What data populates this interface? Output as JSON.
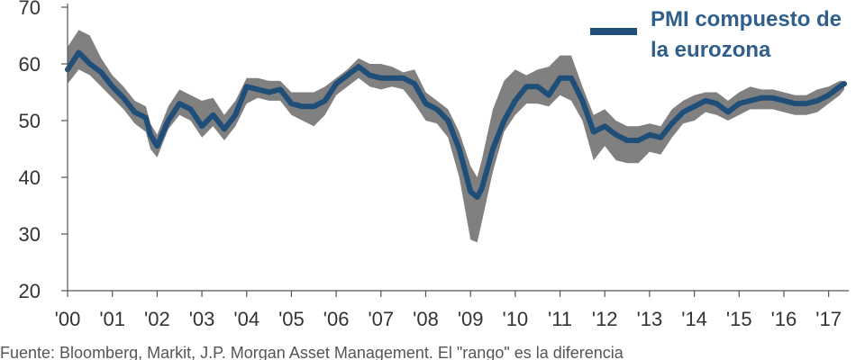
{
  "chart_data": {
    "type": "line",
    "title": "",
    "xlabel": "",
    "ylabel": "",
    "ylim": [
      20,
      70
    ],
    "xlim": [
      2000,
      2017.45
    ],
    "y_ticks": [
      20,
      30,
      40,
      50,
      60,
      70
    ],
    "x_tick_values": [
      2000,
      2001,
      2002,
      2003,
      2004,
      2005,
      2006,
      2007,
      2008,
      2009,
      2010,
      2011,
      2012,
      2013,
      2014,
      2015,
      2016,
      2017
    ],
    "x_tick_labels": [
      "'00",
      "'01",
      "'02",
      "'03",
      "'04",
      "'05",
      "'06",
      "'07",
      "'08",
      "'09",
      "'10",
      "'11",
      "'12",
      "'13",
      "'14",
      "'15",
      "'16",
      "'17"
    ],
    "grid": false,
    "legend_position": "top-right",
    "colors": {
      "line": "#1f4e79",
      "band": "#808080",
      "axis": "#555555"
    },
    "series": [
      {
        "name": "PMI compuesto de la eurozona",
        "role": "line",
        "x": [
          2000.0,
          2000.25,
          2000.5,
          2000.75,
          2001.0,
          2001.25,
          2001.5,
          2001.75,
          2001.85,
          2002.0,
          2002.25,
          2002.5,
          2002.75,
          2003.0,
          2003.25,
          2003.5,
          2003.75,
          2004.0,
          2004.25,
          2004.5,
          2004.75,
          2005.0,
          2005.25,
          2005.5,
          2005.75,
          2006.0,
          2006.25,
          2006.5,
          2006.75,
          2007.0,
          2007.25,
          2007.5,
          2007.75,
          2008.0,
          2008.25,
          2008.5,
          2008.75,
          2009.0,
          2009.15,
          2009.25,
          2009.5,
          2009.75,
          2010.0,
          2010.25,
          2010.5,
          2010.75,
          2011.0,
          2011.25,
          2011.5,
          2011.75,
          2012.0,
          2012.25,
          2012.5,
          2012.75,
          2013.0,
          2013.25,
          2013.5,
          2013.75,
          2014.0,
          2014.25,
          2014.5,
          2014.75,
          2015.0,
          2015.25,
          2015.5,
          2015.75,
          2016.0,
          2016.25,
          2016.5,
          2016.75,
          2017.0,
          2017.25,
          2017.35
        ],
        "values": [
          59,
          62,
          60,
          58.5,
          56,
          54,
          51.5,
          50.5,
          47.5,
          45.5,
          50,
          53,
          52,
          49,
          51,
          48.5,
          51,
          56,
          55.5,
          55,
          55.5,
          53,
          52.5,
          52.5,
          53.5,
          56.5,
          58,
          59.5,
          58,
          57.5,
          57.5,
          57.5,
          56.5,
          53,
          52,
          50,
          45,
          37.5,
          36.5,
          38,
          45,
          50,
          53.5,
          56,
          56,
          54.5,
          57.5,
          57.5,
          53.5,
          48,
          49,
          47.5,
          46.5,
          46.5,
          47.5,
          47,
          49.5,
          51.5,
          52.5,
          53.5,
          53,
          51.5,
          53,
          53.5,
          54,
          54,
          53.5,
          53,
          53,
          53.5,
          54.5,
          56,
          56.5
        ]
      },
      {
        "name": "",
        "role": "band",
        "x": [
          2000.0,
          2000.25,
          2000.5,
          2000.75,
          2001.0,
          2001.25,
          2001.5,
          2001.75,
          2001.85,
          2002.0,
          2002.25,
          2002.5,
          2002.75,
          2003.0,
          2003.25,
          2003.5,
          2003.75,
          2004.0,
          2004.25,
          2004.5,
          2004.75,
          2005.0,
          2005.25,
          2005.5,
          2005.75,
          2006.0,
          2006.25,
          2006.5,
          2006.75,
          2007.0,
          2007.25,
          2007.5,
          2007.75,
          2008.0,
          2008.25,
          2008.5,
          2008.75,
          2009.0,
          2009.15,
          2009.25,
          2009.5,
          2009.75,
          2010.0,
          2010.25,
          2010.5,
          2010.75,
          2011.0,
          2011.25,
          2011.5,
          2011.75,
          2012.0,
          2012.25,
          2012.5,
          2012.75,
          2013.0,
          2013.25,
          2013.5,
          2013.75,
          2014.0,
          2014.25,
          2014.5,
          2014.75,
          2015.0,
          2015.25,
          2015.5,
          2015.75,
          2016.0,
          2016.25,
          2016.5,
          2016.75,
          2017.0,
          2017.25,
          2017.35
        ],
        "upper": [
          63,
          66,
          65,
          61,
          58,
          56,
          53.5,
          52.5,
          49.5,
          47.5,
          52.5,
          55.5,
          54.5,
          53.5,
          54,
          51,
          53.5,
          57.5,
          57.5,
          57,
          57,
          55,
          55,
          55,
          56,
          57.5,
          59,
          61,
          60,
          60,
          59.5,
          58.5,
          59,
          55,
          53.5,
          52,
          48,
          42,
          40,
          43,
          52,
          57,
          59,
          58,
          59,
          59.5,
          61.5,
          61.5,
          56,
          51,
          52,
          50,
          49,
          49,
          49.5,
          49,
          52,
          53.5,
          54.5,
          55,
          55,
          53.5,
          55,
          56,
          55.5,
          55.5,
          55,
          54.5,
          54.5,
          55.5,
          56,
          57,
          57
        ]
      },
      {
        "name": "",
        "role": "band",
        "x": [
          2000.0,
          2000.25,
          2000.5,
          2000.75,
          2001.0,
          2001.25,
          2001.5,
          2001.75,
          2001.85,
          2002.0,
          2002.25,
          2002.5,
          2002.75,
          2003.0,
          2003.25,
          2003.5,
          2003.75,
          2004.0,
          2004.25,
          2004.5,
          2004.75,
          2005.0,
          2005.25,
          2005.5,
          2005.75,
          2006.0,
          2006.25,
          2006.5,
          2006.75,
          2007.0,
          2007.25,
          2007.5,
          2007.75,
          2008.0,
          2008.25,
          2008.5,
          2008.75,
          2009.0,
          2009.15,
          2009.25,
          2009.5,
          2009.75,
          2010.0,
          2010.25,
          2010.5,
          2010.75,
          2011.0,
          2011.25,
          2011.5,
          2011.75,
          2012.0,
          2012.25,
          2012.5,
          2012.75,
          2013.0,
          2013.25,
          2013.5,
          2013.75,
          2014.0,
          2014.25,
          2014.5,
          2014.75,
          2015.0,
          2015.25,
          2015.5,
          2015.75,
          2016.0,
          2016.25,
          2016.5,
          2016.75,
          2017.0,
          2017.25,
          2017.35
        ],
        "lower": [
          56.5,
          59,
          58,
          56,
          54,
          52,
          49.5,
          48,
          45,
          43.5,
          48.5,
          51,
          50,
          47,
          49,
          46.5,
          49,
          53,
          54,
          53.5,
          53.5,
          51,
          50,
          49,
          51,
          54.5,
          56,
          57.5,
          56,
          55.5,
          56,
          55.5,
          53,
          50,
          49.5,
          47,
          40,
          29,
          28.5,
          32,
          41,
          48,
          51,
          53,
          53,
          52.5,
          54.5,
          53.5,
          50,
          43,
          45.5,
          43,
          42.5,
          42.5,
          44.5,
          44,
          47,
          49.5,
          50,
          51.5,
          51,
          50,
          51,
          52,
          52,
          52,
          51.5,
          51,
          51,
          51.5,
          53,
          54.5,
          55.5
        ]
      }
    ]
  },
  "legend": {
    "label_line1": "PMI compuesto de",
    "label_line2": "la eurozona",
    "swatch_color": "#1f4e79"
  },
  "footnote": {
    "text": "Fuente: Bloomberg, Markit, J.P. Morgan Asset Management. El \"rango\" es la diferencia"
  }
}
